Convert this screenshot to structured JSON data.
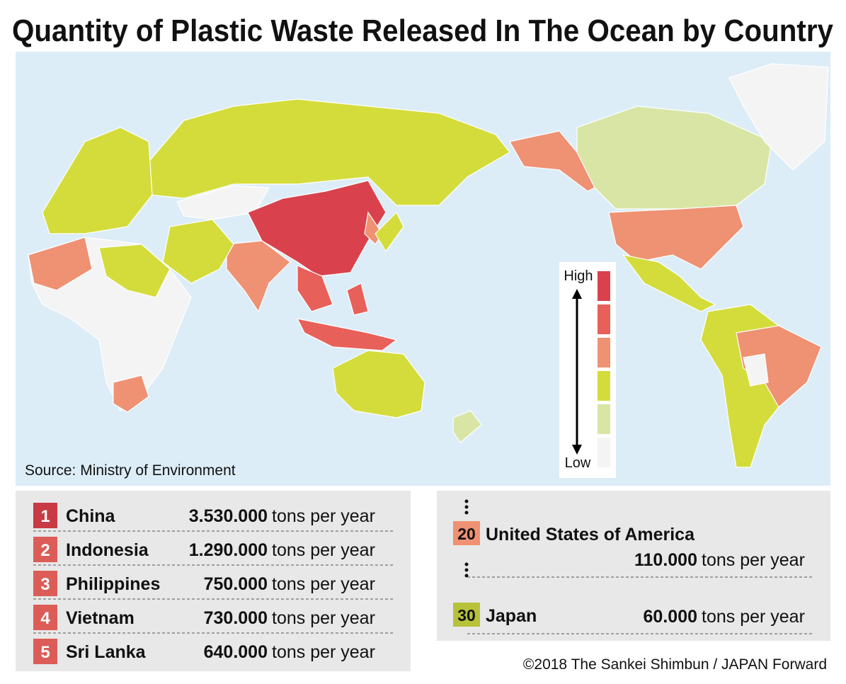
{
  "title": "Quantity of Plastic Waste Released In The Ocean by Country",
  "source": "Source: Ministry of Environment",
  "legend": {
    "high": "High",
    "low": "Low",
    "colors": [
      "#d9424c",
      "#e8605a",
      "#ef9173",
      "#d4dc3c",
      "#d8e5a5",
      "#f4f4f4"
    ]
  },
  "rankings": [
    {
      "rank": 1,
      "country": "China",
      "amount": "3.530.000",
      "unit": "tons per year",
      "color": "#c83a44"
    },
    {
      "rank": 2,
      "country": "Indonesia",
      "amount": "1.290.000",
      "unit": "tons per year",
      "color": "#dc5d57"
    },
    {
      "rank": 3,
      "country": "Philippines",
      "amount": "750.000",
      "unit": "tons per year",
      "color": "#dc5d57"
    },
    {
      "rank": 4,
      "country": "Vietnam",
      "amount": "730.000",
      "unit": "tons per year",
      "color": "#dc5d57"
    },
    {
      "rank": 5,
      "country": "Sri Lanka",
      "amount": "640.000",
      "unit": "tons per year",
      "color": "#dc5d57"
    }
  ],
  "highlights": [
    {
      "rank": 20,
      "country": "United States of America",
      "amount": "110.000",
      "unit": "tons per year",
      "color": "#ef9173"
    },
    {
      "rank": 30,
      "country": "Japan",
      "amount": "60.000",
      "unit": "tons per year",
      "color": "#b7c23a"
    }
  ],
  "copyright": "©2018 The Sankei Shimbun / JAPAN Forward"
}
